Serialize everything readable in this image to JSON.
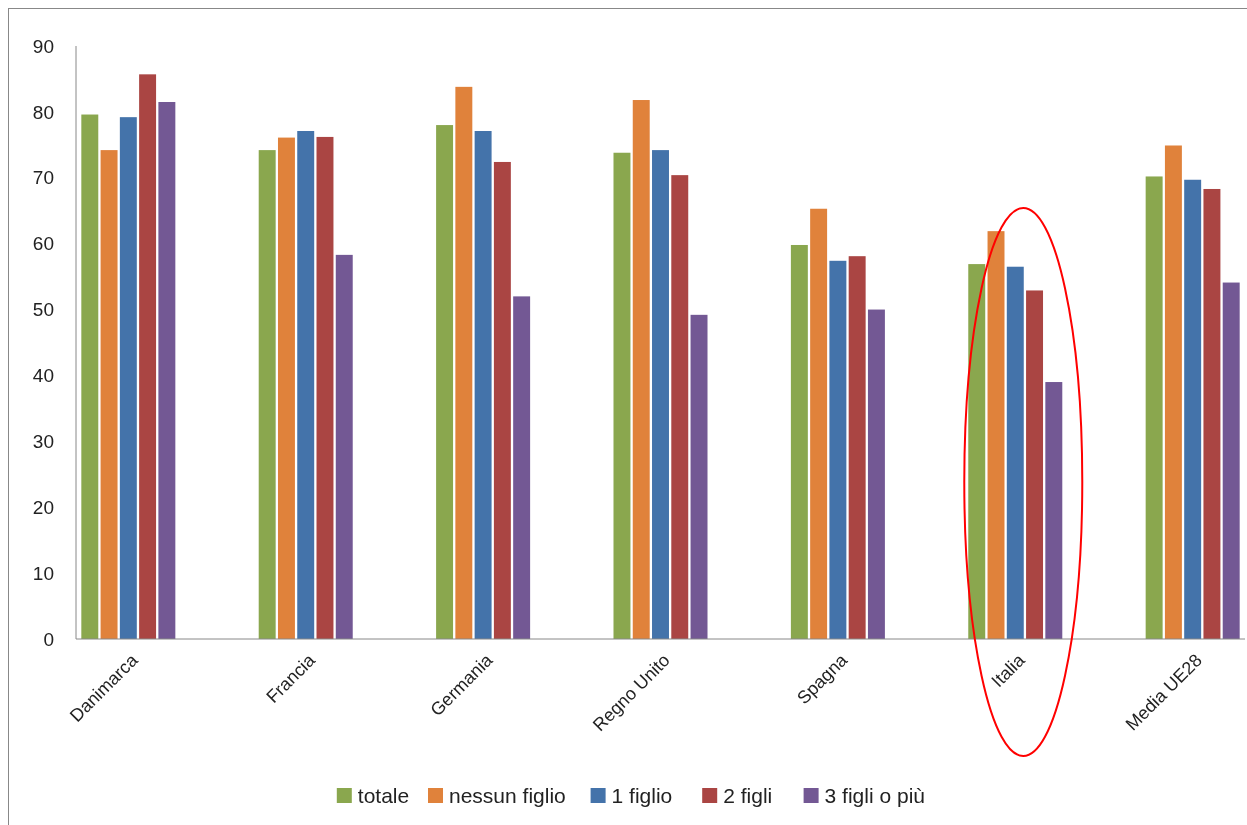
{
  "chart_data": {
    "type": "bar",
    "categories": [
      "Danimarca",
      "Francia",
      "Germania",
      "Regno Unito",
      "Spagna",
      "Italia",
      "Media UE28"
    ],
    "series": [
      {
        "name": "totale",
        "color": "#8aa74e",
        "values": [
          79.6,
          74.2,
          78.0,
          73.8,
          59.8,
          56.9,
          70.2
        ]
      },
      {
        "name": "nessun figlio",
        "color": "#e0823b",
        "values": [
          74.2,
          76.1,
          83.8,
          81.8,
          65.3,
          61.9,
          74.9
        ]
      },
      {
        "name": "1 figlio",
        "color": "#4473aa",
        "values": [
          79.2,
          77.1,
          77.1,
          74.2,
          57.4,
          56.5,
          69.7
        ]
      },
      {
        "name": "2 figli",
        "color": "#aa4543",
        "values": [
          85.7,
          76.2,
          72.4,
          70.4,
          58.1,
          52.9,
          68.3
        ]
      },
      {
        "name": "3 figli o più",
        "color": "#735894",
        "values": [
          81.5,
          58.3,
          52.0,
          49.2,
          50.0,
          39.0,
          54.1
        ]
      }
    ],
    "ylim": [
      0,
      90
    ],
    "yticks": [
      0,
      10,
      20,
      30,
      40,
      50,
      60,
      70,
      80,
      90
    ],
    "grid": false,
    "legend": "bottom"
  }
}
